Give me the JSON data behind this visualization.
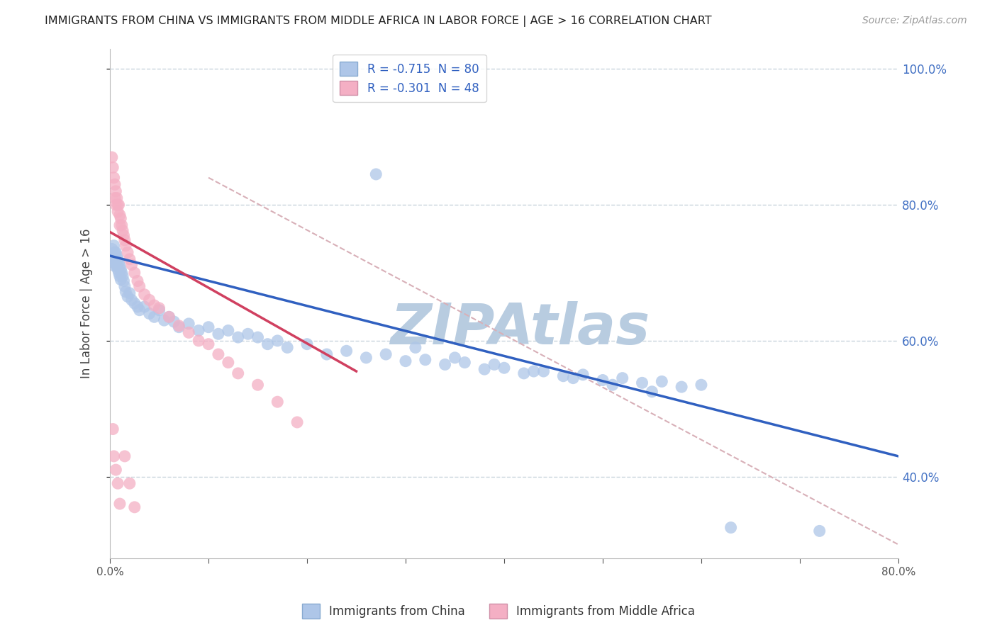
{
  "title": "IMMIGRANTS FROM CHINA VS IMMIGRANTS FROM MIDDLE AFRICA IN LABOR FORCE | AGE > 16 CORRELATION CHART",
  "source": "Source: ZipAtlas.com",
  "ylabel": "In Labor Force | Age > 16",
  "xlim": [
    0.0,
    0.8
  ],
  "ylim": [
    0.28,
    1.03
  ],
  "yticks": [
    0.4,
    0.6,
    0.8,
    1.0
  ],
  "xticks": [
    0.0,
    0.1,
    0.2,
    0.3,
    0.4,
    0.5,
    0.6,
    0.7,
    0.8
  ],
  "china_R": -0.715,
  "china_N": 80,
  "africa_R": -0.301,
  "africa_N": 48,
  "china_color": "#aec6e8",
  "africa_color": "#f4afc4",
  "china_line_color": "#3060c0",
  "africa_line_color": "#d04060",
  "ref_line_color": "#d8b0b8",
  "watermark": "ZIPAtlas",
  "watermark_color": "#b8cce0",
  "background_color": "#ffffff",
  "grid_color": "#c8d4dc",
  "legend_label_china": "R = -0.715  N = 80",
  "legend_label_africa": "R = -0.301  N = 48",
  "bottom_label_china": "Immigrants from China",
  "bottom_label_africa": "Immigrants from Middle Africa",
  "china_x": [
    0.002,
    0.003,
    0.004,
    0.004,
    0.005,
    0.005,
    0.005,
    0.006,
    0.006,
    0.007,
    0.007,
    0.008,
    0.008,
    0.009,
    0.009,
    0.01,
    0.01,
    0.011,
    0.011,
    0.012,
    0.013,
    0.014,
    0.015,
    0.016,
    0.018,
    0.02,
    0.022,
    0.025,
    0.028,
    0.03,
    0.035,
    0.04,
    0.045,
    0.05,
    0.055,
    0.06,
    0.065,
    0.07,
    0.08,
    0.09,
    0.1,
    0.11,
    0.12,
    0.13,
    0.14,
    0.15,
    0.16,
    0.17,
    0.18,
    0.2,
    0.22,
    0.24,
    0.26,
    0.28,
    0.3,
    0.32,
    0.34,
    0.36,
    0.38,
    0.4,
    0.42,
    0.44,
    0.46,
    0.48,
    0.5,
    0.52,
    0.54,
    0.56,
    0.58,
    0.6,
    0.27,
    0.31,
    0.35,
    0.39,
    0.43,
    0.47,
    0.51,
    0.55,
    0.63,
    0.72
  ],
  "china_y": [
    0.735,
    0.72,
    0.74,
    0.715,
    0.73,
    0.72,
    0.71,
    0.73,
    0.715,
    0.725,
    0.71,
    0.72,
    0.705,
    0.715,
    0.7,
    0.71,
    0.695,
    0.705,
    0.69,
    0.7,
    0.695,
    0.688,
    0.68,
    0.672,
    0.665,
    0.67,
    0.66,
    0.655,
    0.65,
    0.645,
    0.65,
    0.64,
    0.635,
    0.645,
    0.63,
    0.635,
    0.628,
    0.62,
    0.625,
    0.615,
    0.62,
    0.61,
    0.615,
    0.605,
    0.61,
    0.605,
    0.595,
    0.6,
    0.59,
    0.595,
    0.58,
    0.585,
    0.575,
    0.58,
    0.57,
    0.572,
    0.565,
    0.568,
    0.558,
    0.56,
    0.552,
    0.555,
    0.548,
    0.55,
    0.542,
    0.545,
    0.538,
    0.54,
    0.532,
    0.535,
    0.845,
    0.59,
    0.575,
    0.565,
    0.555,
    0.545,
    0.535,
    0.525,
    0.325,
    0.32
  ],
  "africa_x": [
    0.002,
    0.003,
    0.004,
    0.005,
    0.005,
    0.006,
    0.006,
    0.007,
    0.008,
    0.008,
    0.009,
    0.01,
    0.01,
    0.011,
    0.012,
    0.013,
    0.014,
    0.015,
    0.016,
    0.018,
    0.02,
    0.022,
    0.025,
    0.028,
    0.03,
    0.035,
    0.04,
    0.045,
    0.05,
    0.06,
    0.07,
    0.08,
    0.09,
    0.1,
    0.11,
    0.12,
    0.13,
    0.15,
    0.17,
    0.19,
    0.003,
    0.004,
    0.006,
    0.008,
    0.01,
    0.015,
    0.02,
    0.025
  ],
  "africa_y": [
    0.87,
    0.855,
    0.84,
    0.83,
    0.81,
    0.82,
    0.8,
    0.81,
    0.8,
    0.79,
    0.8,
    0.785,
    0.77,
    0.78,
    0.77,
    0.762,
    0.755,
    0.748,
    0.74,
    0.73,
    0.72,
    0.712,
    0.7,
    0.688,
    0.68,
    0.668,
    0.66,
    0.652,
    0.648,
    0.635,
    0.622,
    0.612,
    0.6,
    0.595,
    0.58,
    0.568,
    0.552,
    0.535,
    0.51,
    0.48,
    0.47,
    0.43,
    0.41,
    0.39,
    0.36,
    0.43,
    0.39,
    0.355
  ],
  "china_line_x": [
    0.0,
    0.8
  ],
  "china_line_y": [
    0.725,
    0.43
  ],
  "africa_line_x": [
    0.0,
    0.25
  ],
  "africa_line_y": [
    0.76,
    0.555
  ],
  "ref_line_x": [
    0.1,
    0.8
  ],
  "ref_line_y": [
    0.84,
    0.3
  ]
}
